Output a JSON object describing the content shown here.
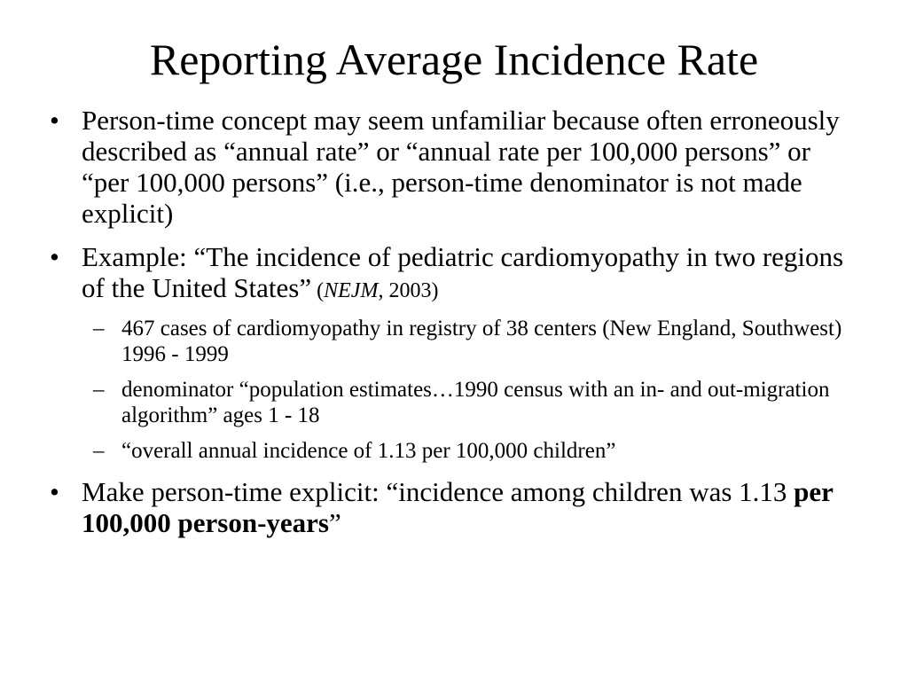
{
  "slide": {
    "title": "Reporting Average Incidence Rate",
    "bullet_marker": "•",
    "sub_marker": "–",
    "bullet1": {
      "text": "Person-time concept may seem unfamiliar because often erroneously described as “annual rate” or “annual rate per 100,000 persons” or “per 100,000 persons” (i.e., person-time denominator is not made explicit)"
    },
    "bullet2": {
      "text": "Example: “The incidence of pediatric cardiomyopathy in two regions of the United States”",
      "cite_open": " (",
      "cite_journal": "NEJM",
      "cite_rest": ", 2003)",
      "subs": [
        "467 cases of cardiomyopathy in registry of 38 centers (New England, Southwest) 1996 - 1999",
        "denominator “population estimates…1990 census with an in- and out-migration algorithm” ages 1 - 18",
        "“overall annual incidence of 1.13 per 100,000 children”"
      ]
    },
    "bullet3": {
      "text": "Make person-time explicit: “incidence among children was 1.13 ",
      "bold": "per 100,000 person-years",
      "end": "”"
    }
  }
}
